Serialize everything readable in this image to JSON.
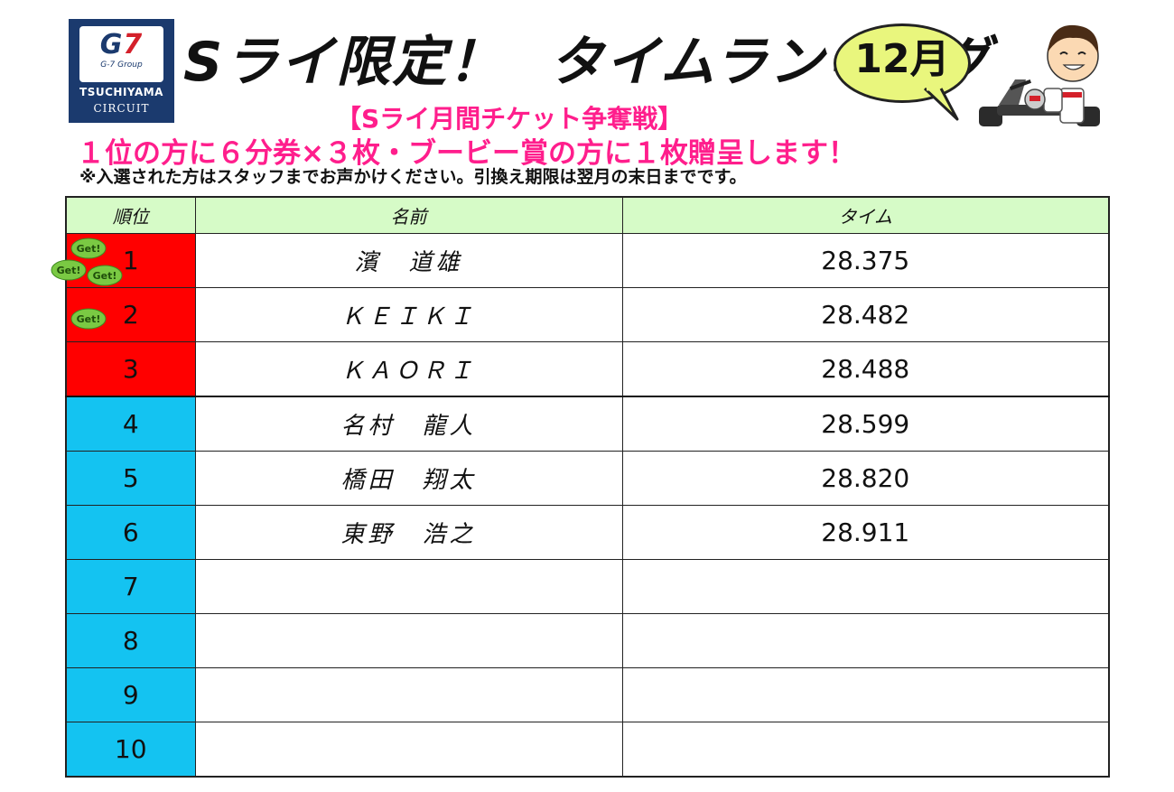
{
  "logo": {
    "brand": "G7",
    "group": "G-7 Group",
    "name": "TSUCHIYAMA",
    "sub": "CIRCUIT"
  },
  "header": {
    "title_part1": "Sライ限定！",
    "title_part2": "タイムランキング",
    "month": "12月",
    "subtitle": "【Sライ月間チケット争奪戦】",
    "prize": "１位の方に６分券×３枚・ブービー賞の方に１枚贈呈します！",
    "note": "※入選された方はスタッフまでお声かけください。引換え期限は翌月の末日までです。"
  },
  "badge_text": "Get!",
  "table": {
    "columns": [
      "順位",
      "名前",
      "タイム"
    ],
    "rows": [
      {
        "rank": "1",
        "name": "濱　道雄",
        "time": "28.375",
        "badges": 3
      },
      {
        "rank": "2",
        "name": "ＫＥＩＫＩ",
        "time": "28.482",
        "badges": 1
      },
      {
        "rank": "3",
        "name": "ＫＡＯＲＩ",
        "time": "28.488",
        "badges": 0
      },
      {
        "rank": "4",
        "name": "名村　龍人",
        "time": "28.599",
        "badges": 0
      },
      {
        "rank": "5",
        "name": "橋田　翔太",
        "time": "28.820",
        "badges": 0
      },
      {
        "rank": "6",
        "name": "東野　浩之",
        "time": "28.911",
        "badges": 0
      },
      {
        "rank": "7",
        "name": "",
        "time": "",
        "badges": 0
      },
      {
        "rank": "8",
        "name": "",
        "time": "",
        "badges": 0
      },
      {
        "rank": "9",
        "name": "",
        "time": "",
        "badges": 0
      },
      {
        "rank": "10",
        "name": "",
        "time": "",
        "badges": 0
      }
    ]
  },
  "colors": {
    "top_rank": "#ff0000",
    "other_rank": "#14c3f1",
    "header_bg": "#d6fbc7",
    "accent_pink": "#ff1e8c",
    "bubble": "#e9f67d",
    "badge": "#7ac943"
  }
}
